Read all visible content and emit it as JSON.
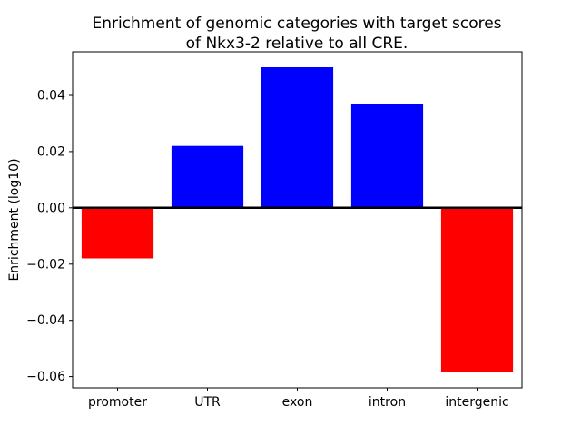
{
  "chart_data": {
    "type": "bar",
    "title_lines": [
      "Enrichment of genomic categories with target scores",
      "of Nkx3-2 relative to all CRE."
    ],
    "ylabel": "Enrichment (log10)",
    "xlabel": "",
    "categories": [
      "promoter",
      "UTR",
      "exon",
      "intron",
      "intergenic"
    ],
    "values": [
      -0.018,
      0.022,
      0.05,
      0.037,
      -0.0585
    ],
    "bar_colors": [
      "#ff0000",
      "#0000ff",
      "#0000ff",
      "#0000ff",
      "#ff0000"
    ],
    "positive_color": "#0000ff",
    "negative_color": "#ff0000",
    "ylim": [
      -0.064,
      0.0555
    ],
    "yticks": [
      {
        "value": 0.04,
        "label": "0.04"
      },
      {
        "value": 0.02,
        "label": "0.02"
      },
      {
        "value": 0.0,
        "label": "0.00"
      },
      {
        "value": -0.02,
        "label": "−0.02"
      },
      {
        "value": -0.04,
        "label": "−0.04"
      },
      {
        "value": -0.06,
        "label": "−0.06"
      }
    ],
    "zero_line": true,
    "grid": false,
    "legend": null,
    "axis_color": "#000000",
    "background_color": "#ffffff"
  }
}
